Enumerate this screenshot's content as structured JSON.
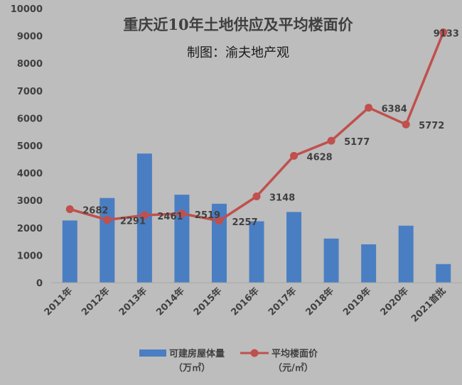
{
  "chart_data": {
    "type": "bar+line",
    "title": "重庆近10年土地供应及平均楼面价",
    "subtitle": "制图：渝夫地产观",
    "categories": [
      "2011年",
      "2012年",
      "2013年",
      "2014年",
      "2015年",
      "2016年",
      "2017年",
      "2018年",
      "2019年",
      "2020年",
      "2021首批"
    ],
    "ylim": [
      0,
      10000
    ],
    "yticks": [
      0,
      1000,
      2000,
      3000,
      4000,
      5000,
      6000,
      7000,
      8000,
      9000,
      10000
    ],
    "grid": false,
    "legend_position": "bottom",
    "series": [
      {
        "name": "可建房屋体量",
        "unit": "（万㎡）",
        "type": "bar",
        "color": "#4a7ec2",
        "values": [
          2270,
          3090,
          4710,
          3210,
          2880,
          2240,
          2580,
          1610,
          1400,
          2080,
          680
        ]
      },
      {
        "name": "平均楼面价",
        "unit": "（元/㎡）",
        "type": "line",
        "color": "#c0504d",
        "values": [
          2682,
          2291,
          2461,
          2519,
          2257,
          3148,
          4628,
          5177,
          6384,
          5772,
          9133
        ],
        "labels": [
          "2682",
          "2291",
          "2461",
          "2519",
          "2257",
          "3148",
          "4628",
          "5177",
          "6384",
          "5772",
          "9133"
        ]
      }
    ]
  }
}
